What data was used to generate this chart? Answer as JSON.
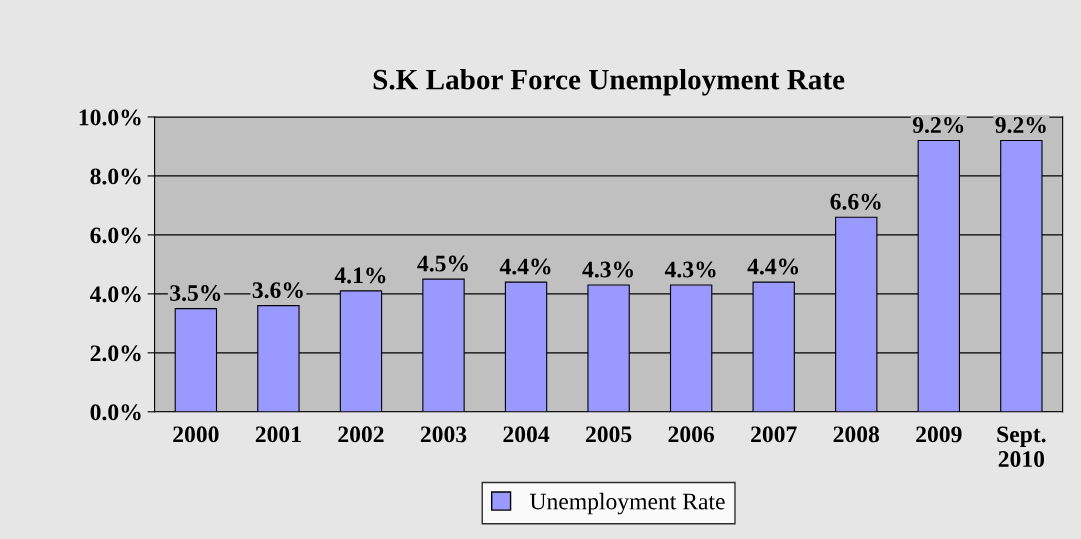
{
  "chart_data": {
    "type": "bar",
    "title": "S.K Labor Force Unemployment Rate",
    "categories": [
      "2000",
      "2001",
      "2002",
      "2003",
      "2004",
      "2005",
      "2006",
      "2007",
      "2008",
      "2009",
      "Sept.\n2010"
    ],
    "series": [
      {
        "name": "Unemployment Rate",
        "color": "#9999ff",
        "values": [
          3.5,
          3.6,
          4.1,
          4.5,
          4.4,
          4.3,
          4.3,
          4.4,
          6.6,
          9.2,
          9.2
        ],
        "value_labels": [
          "3.5%",
          "3.6%",
          "4.1%",
          "4.5%",
          "4.4%",
          "4.3%",
          "4.3%",
          "4.4%",
          "6.6%",
          "9.2%",
          "9.2%"
        ]
      }
    ],
    "ylim": [
      0,
      10
    ],
    "yticks": [
      {
        "value": 0,
        "label": "0.0%"
      },
      {
        "value": 2,
        "label": "2.0%"
      },
      {
        "value": 4,
        "label": "4.0%"
      },
      {
        "value": 6,
        "label": "6.0%"
      },
      {
        "value": 8,
        "label": "8.0%"
      },
      {
        "value": 10,
        "label": "10.0%"
      }
    ],
    "grid": "y",
    "legend": "bottom"
  }
}
